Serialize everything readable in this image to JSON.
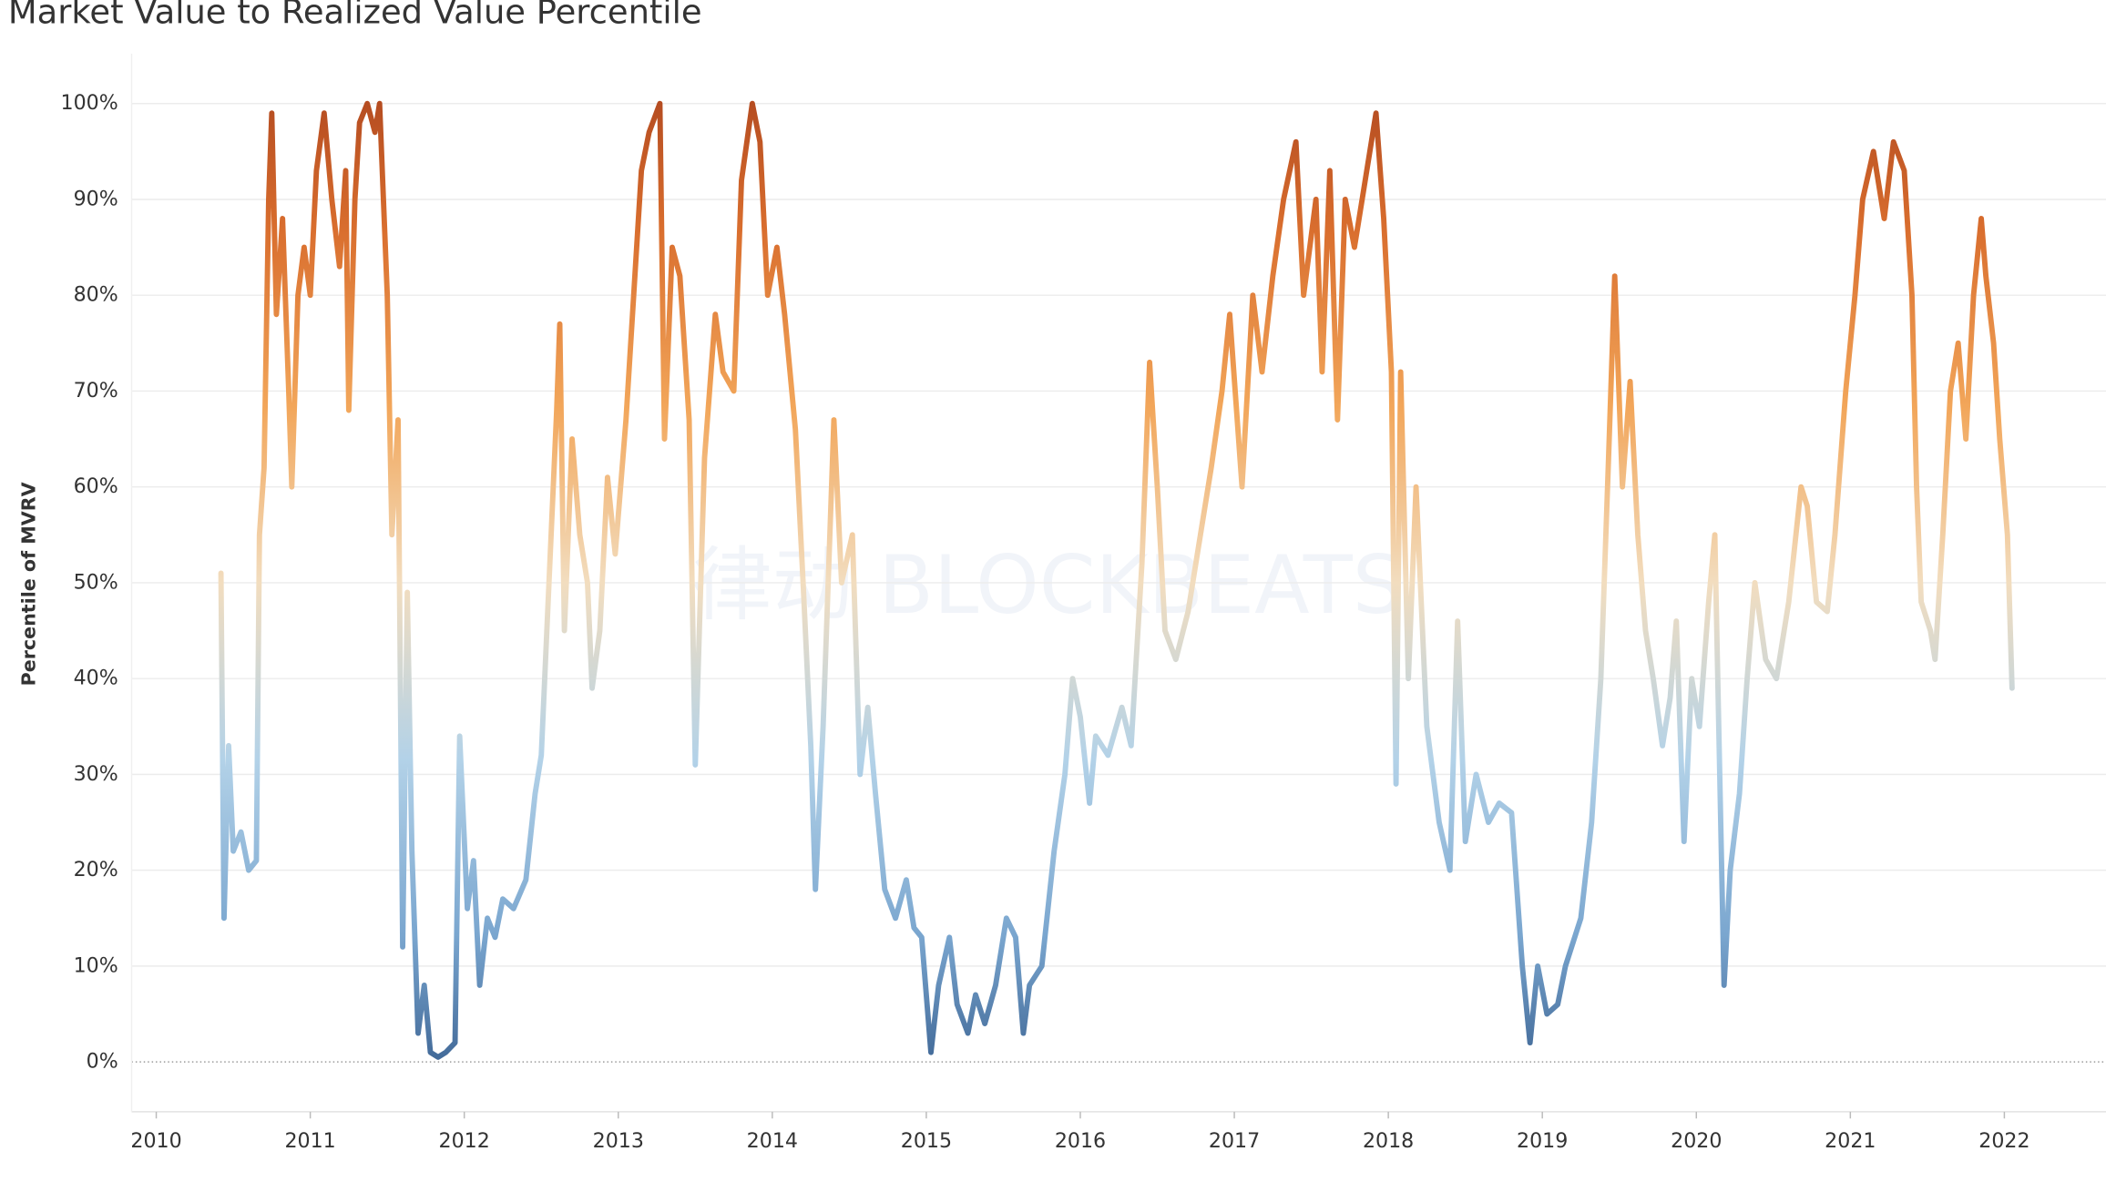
{
  "chart_data": {
    "type": "line",
    "title": "Market Value to Realized Value Percentile",
    "y_label": "Percentile of MVRV",
    "watermark": "律动 BLOCKBEATS",
    "xlim": [
      2009.84,
      2022.66
    ],
    "xticks": [
      2010,
      2011,
      2012,
      2013,
      2014,
      2015,
      2016,
      2017,
      2018,
      2019,
      2020,
      2021,
      2022
    ],
    "ylim": [
      -5.2,
      105.2
    ],
    "yticks": [
      {
        "value": 0,
        "label": "0%"
      },
      {
        "value": 10,
        "label": "10%"
      },
      {
        "value": 20,
        "label": "20%"
      },
      {
        "value": 30,
        "label": "30%"
      },
      {
        "value": 40,
        "label": "40%"
      },
      {
        "value": 50,
        "label": "50%"
      },
      {
        "value": 60,
        "label": "60%"
      },
      {
        "value": 70,
        "label": "70%"
      },
      {
        "value": 80,
        "label": "80%"
      },
      {
        "value": 90,
        "label": "90%"
      },
      {
        "value": 100,
        "label": "100%"
      }
    ],
    "grid": true,
    "color_scale": [
      "#2c5283",
      "#7aa6cf",
      "#b3d2e8",
      "#f2ddbf",
      "#f2a65a",
      "#d96e2e",
      "#a8401c"
    ],
    "x": [
      2010.42,
      2010.44,
      2010.47,
      2010.5,
      2010.55,
      2010.6,
      2010.65,
      2010.67,
      2010.7,
      2010.73,
      2010.75,
      2010.78,
      2010.82,
      2010.86,
      2010.88,
      2010.92,
      2010.96,
      2011.0,
      2011.04,
      2011.09,
      2011.14,
      2011.19,
      2011.23,
      2011.25,
      2011.29,
      2011.32,
      2011.37,
      2011.42,
      2011.45,
      2011.5,
      2011.53,
      2011.57,
      2011.6,
      2011.63,
      2011.66,
      2011.7,
      2011.74,
      2011.78,
      2011.83,
      2011.88,
      2011.94,
      2011.97,
      2012.02,
      2012.06,
      2012.1,
      2012.15,
      2012.2,
      2012.25,
      2012.32,
      2012.4,
      2012.46,
      2012.5,
      2012.55,
      2012.6,
      2012.62,
      2012.65,
      2012.7,
      2012.75,
      2012.8,
      2012.83,
      2012.88,
      2012.93,
      2012.98,
      2013.05,
      2013.1,
      2013.15,
      2013.2,
      2013.27,
      2013.3,
      2013.35,
      2013.4,
      2013.46,
      2013.5,
      2013.56,
      2013.63,
      2013.68,
      2013.75,
      2013.8,
      2013.87,
      2013.92,
      2013.97,
      2014.03,
      2014.08,
      2014.15,
      2014.2,
      2014.25,
      2014.28,
      2014.33,
      2014.4,
      2014.45,
      2014.52,
      2014.57,
      2014.62,
      2014.67,
      2014.73,
      2014.8,
      2014.87,
      2014.92,
      2014.97,
      2015.03,
      2015.08,
      2015.15,
      2015.2,
      2015.27,
      2015.32,
      2015.38,
      2015.45,
      2015.52,
      2015.58,
      2015.63,
      2015.67,
      2015.75,
      2015.83,
      2015.9,
      2015.95,
      2016.0,
      2016.06,
      2016.1,
      2016.18,
      2016.27,
      2016.33,
      2016.4,
      2016.45,
      2016.5,
      2016.55,
      2016.62,
      2016.7,
      2016.78,
      2016.85,
      2016.92,
      2016.97,
      2017.05,
      2017.12,
      2017.18,
      2017.25,
      2017.32,
      2017.4,
      2017.45,
      2017.53,
      2017.57,
      2017.62,
      2017.67,
      2017.72,
      2017.78,
      2017.85,
      2017.92,
      2017.97,
      2018.02,
      2018.05,
      2018.08,
      2018.13,
      2018.18,
      2018.25,
      2018.33,
      2018.4,
      2018.45,
      2018.5,
      2018.57,
      2018.65,
      2018.72,
      2018.8,
      2018.87,
      2018.92,
      2018.97,
      2019.03,
      2019.1,
      2019.15,
      2019.25,
      2019.32,
      2019.38,
      2019.43,
      2019.47,
      2019.52,
      2019.57,
      2019.62,
      2019.67,
      2019.72,
      2019.78,
      2019.83,
      2019.87,
      2019.92,
      2019.97,
      2020.02,
      2020.08,
      2020.12,
      2020.18,
      2020.22,
      2020.28,
      2020.33,
      2020.38,
      2020.45,
      2020.52,
      2020.6,
      2020.68,
      2020.72,
      2020.78,
      2020.85,
      2020.9,
      2020.97,
      2021.03,
      2021.08,
      2021.15,
      2021.22,
      2021.28,
      2021.35,
      2021.4,
      2021.43,
      2021.46,
      2021.52,
      2021.55,
      2021.6,
      2021.65,
      2021.7,
      2021.75,
      2021.8,
      2021.85,
      2021.88,
      2021.93,
      2021.97,
      2022.02,
      2022.05
    ],
    "values": [
      51,
      15,
      33,
      22,
      24,
      20,
      21,
      55,
      62,
      90,
      99,
      78,
      88,
      70,
      60,
      80,
      85,
      80,
      93,
      99,
      90,
      83,
      93,
      68,
      90,
      98,
      100,
      97,
      100,
      80,
      55,
      67,
      12,
      49,
      22,
      3,
      8,
      1,
      0.5,
      1,
      2,
      34,
      16,
      21,
      8,
      15,
      13,
      17,
      16,
      19,
      28,
      32,
      50,
      68,
      77,
      45,
      65,
      55,
      50,
      39,
      45,
      61,
      53,
      67,
      80,
      93,
      97,
      100,
      65,
      85,
      82,
      67,
      31,
      63,
      78,
      72,
      70,
      92,
      100,
      96,
      80,
      85,
      78,
      66,
      50,
      33,
      18,
      35,
      67,
      50,
      55,
      30,
      37,
      28,
      18,
      15,
      19,
      14,
      13,
      1,
      8,
      13,
      6,
      3,
      7,
      4,
      8,
      15,
      13,
      3,
      8,
      10,
      22,
      30,
      40,
      36,
      27,
      34,
      32,
      37,
      33,
      52,
      73,
      60,
      45,
      42,
      47,
      55,
      62,
      70,
      78,
      60,
      80,
      72,
      82,
      90,
      96,
      80,
      90,
      72,
      93,
      67,
      90,
      85,
      92,
      99,
      88,
      72,
      29,
      72,
      40,
      60,
      35,
      25,
      20,
      46,
      23,
      30,
      25,
      27,
      26,
      10,
      2,
      10,
      5,
      6,
      10,
      15,
      25,
      40,
      63,
      82,
      60,
      71,
      55,
      45,
      40,
      33,
      38,
      46,
      23,
      40,
      35,
      48,
      55,
      8,
      20,
      28,
      40,
      50,
      42,
      40,
      48,
      60,
      58,
      48,
      47,
      55,
      70,
      80,
      90,
      95,
      88,
      96,
      93,
      80,
      60,
      48,
      45,
      42,
      55,
      70,
      75,
      65,
      80,
      88,
      82,
      75,
      65,
      55,
      39
    ]
  }
}
